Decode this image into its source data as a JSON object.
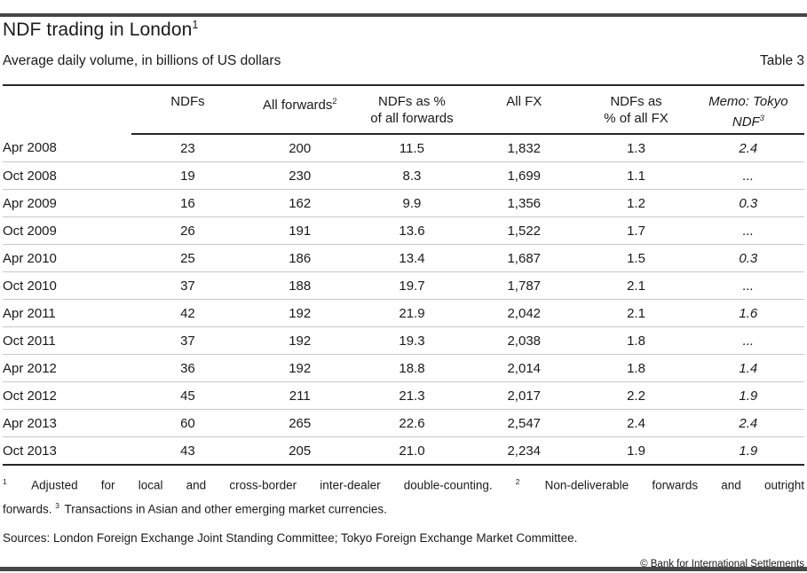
{
  "colors": {
    "page_bar": "#474747",
    "rule_dark": "#262626",
    "rule_light": "#c9c9c9",
    "text": "#1a1a1a"
  },
  "header": {
    "title": "NDF trading in London",
    "title_superscript": "1",
    "subtitle": "Average daily volume, in billions of US dollars",
    "table_label": "Table 3"
  },
  "table": {
    "columns": [
      {
        "name": "period",
        "lines": []
      },
      {
        "name": "ndfs",
        "lines": [
          "NDFs"
        ]
      },
      {
        "name": "all-forwards",
        "lines": [
          "All forwards"
        ],
        "superscript": "2"
      },
      {
        "name": "ndfs-pct-of-all-forwards",
        "lines": [
          "NDFs as %",
          "of all forwards"
        ]
      },
      {
        "name": "all-fx",
        "lines": [
          "All FX"
        ]
      },
      {
        "name": "ndfs-pct-of-all-fx",
        "lines": [
          "NDFs as",
          "% of all FX"
        ]
      },
      {
        "name": "memo-tokyo-ndf",
        "lines": [
          "Memo: Tokyo",
          "NDF"
        ],
        "superscript": "3",
        "italic": true
      }
    ],
    "rows": [
      {
        "period": "Apr 2008",
        "values": [
          "23",
          "200",
          "11.5",
          "1,832",
          "1.3",
          "2.4"
        ]
      },
      {
        "period": "Oct 2008",
        "values": [
          "19",
          "230",
          "8.3",
          "1,699",
          "1.1",
          "..."
        ]
      },
      {
        "period": "Apr 2009",
        "values": [
          "16",
          "162",
          "9.9",
          "1,356",
          "1.2",
          "0.3"
        ]
      },
      {
        "period": "Oct 2009",
        "values": [
          "26",
          "191",
          "13.6",
          "1,522",
          "1.7",
          "..."
        ]
      },
      {
        "period": "Apr 2010",
        "values": [
          "25",
          "186",
          "13.4",
          "1,687",
          "1.5",
          "0.3"
        ]
      },
      {
        "period": "Oct 2010",
        "values": [
          "37",
          "188",
          "19.7",
          "1,787",
          "2.1",
          "..."
        ]
      },
      {
        "period": "Apr 2011",
        "values": [
          "42",
          "192",
          "21.9",
          "2,042",
          "2.1",
          "1.6"
        ]
      },
      {
        "period": "Oct 2011",
        "values": [
          "37",
          "192",
          "19.3",
          "2,038",
          "1.8",
          "..."
        ]
      },
      {
        "period": "Apr 2012",
        "values": [
          "36",
          "192",
          "18.8",
          "2,014",
          "1.8",
          "1.4"
        ]
      },
      {
        "period": "Oct 2012",
        "values": [
          "45",
          "211",
          "21.3",
          "2,017",
          "2.2",
          "1.9"
        ]
      },
      {
        "period": "Apr 2013",
        "values": [
          "60",
          "265",
          "22.6",
          "2,547",
          "2.4",
          "2.4"
        ]
      },
      {
        "period": "Oct 2013",
        "values": [
          "43",
          "205",
          "21.0",
          "2,234",
          "1.9",
          "1.9"
        ]
      }
    ]
  },
  "footnotes": {
    "line1": [
      {
        "sup": "1",
        "text": "Adjusted for local and cross-border inter-dealer double-counting."
      },
      {
        "sup": "2",
        "text": "Non-deliverable forwards and outright"
      }
    ],
    "line2": [
      {
        "text": "forwards."
      },
      {
        "sup": "3",
        "text": "Transactions in Asian and other emerging market currencies."
      }
    ]
  },
  "footer": {
    "sources": "Sources: London Foreign Exchange Joint Standing Committee; Tokyo Foreign Exchange Market Committee.",
    "copyright": "© Bank for International Settlements"
  }
}
